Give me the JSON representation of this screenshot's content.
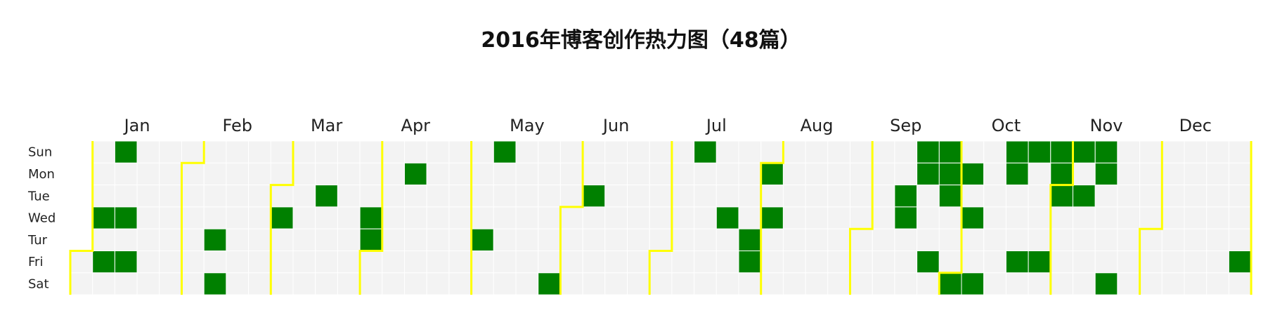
{
  "chart_data": {
    "type": "heatmap",
    "title": "2016年博客创作热力图（48篇）",
    "year": 2016,
    "months": [
      "Jan",
      "Feb",
      "Mar",
      "Apr",
      "May",
      "Jun",
      "Jul",
      "Aug",
      "Sep",
      "Oct",
      "Nov",
      "Dec"
    ],
    "days": [
      "Sun",
      "Mon",
      "Tue",
      "Wed",
      "Tur",
      "Fri",
      "Sat"
    ],
    "colors": {
      "empty": "#f3f3f3",
      "active": "#008000",
      "grid": "#ffffff",
      "month_boundary": "#ffff00"
    },
    "active_dates": [
      "2016-01-06",
      "2016-01-08",
      "2016-01-10",
      "2016-01-13",
      "2016-01-15",
      "2016-02-11",
      "2016-02-13",
      "2016-03-02",
      "2016-03-15",
      "2016-03-30",
      "2016-03-31",
      "2016-04-11",
      "2016-05-05",
      "2016-05-08",
      "2016-05-28",
      "2016-06-07",
      "2016-07-10",
      "2016-07-20",
      "2016-07-28",
      "2016-07-29",
      "2016-08-01",
      "2016-08-03",
      "2016-09-13",
      "2016-09-14",
      "2016-09-18",
      "2016-09-19",
      "2016-09-23",
      "2016-09-25",
      "2016-09-26",
      "2016-09-27",
      "2016-10-01",
      "2016-10-03",
      "2016-10-05",
      "2016-10-08",
      "2016-10-16",
      "2016-10-17",
      "2016-10-21",
      "2016-10-23",
      "2016-10-28",
      "2016-10-30",
      "2016-10-31",
      "2016-11-01",
      "2016-11-06",
      "2016-11-08",
      "2016-11-13",
      "2016-11-14",
      "2016-11-19",
      "2016-12-30"
    ]
  }
}
